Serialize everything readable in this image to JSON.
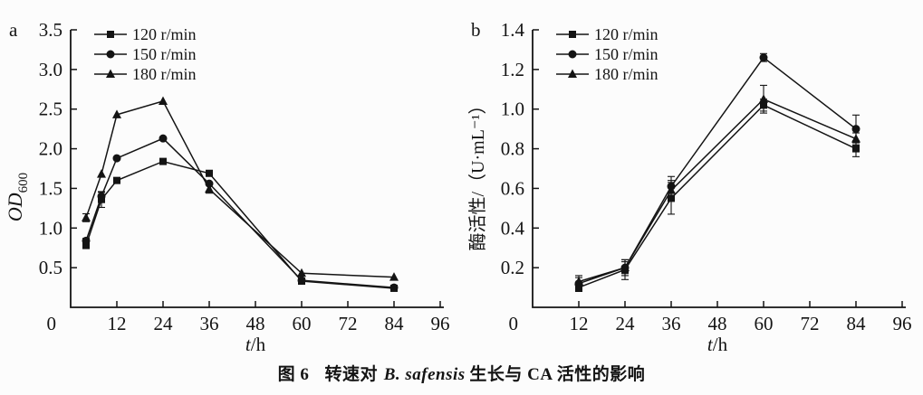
{
  "colors": {
    "ink": "#141414",
    "background": "#fcfcfc"
  },
  "figure": {
    "caption": {
      "figure_no": "图 6",
      "pre": "转速对",
      "species": "B. safensis",
      "post": "生长与 CA 活性的影响"
    }
  },
  "chart_data": [
    {
      "type": "line",
      "panel_label": "a",
      "xlabel": {
        "italic": "t",
        "rest": "/h"
      },
      "ylabel": {
        "main": "OD",
        "sub": "600"
      },
      "xlim": [
        0,
        96
      ],
      "ylim": [
        0,
        3.5
      ],
      "xticks": [
        12,
        24,
        36,
        48,
        60,
        72,
        84,
        96
      ],
      "yticks": [
        0,
        0.5,
        1.0,
        1.5,
        2.0,
        2.5,
        3.0,
        3.5
      ],
      "ytick_labels": [
        "0",
        "0.5",
        "1.0",
        "1.5",
        "2.0",
        "2.5",
        "3.0",
        "3.5"
      ],
      "grid": false,
      "legend_position": "top-left",
      "x": [
        4,
        8,
        12,
        24,
        36,
        60,
        84
      ],
      "series": [
        {
          "name": "120 r/min",
          "marker": "square",
          "values": [
            0.78,
            1.36,
            1.6,
            1.84,
            1.69,
            0.33,
            0.24
          ],
          "errors": [
            0.03,
            0.1,
            0,
            0,
            0,
            0,
            0
          ]
        },
        {
          "name": "150 r/min",
          "marker": "circle",
          "values": [
            0.84,
            1.4,
            1.88,
            2.13,
            1.56,
            0.34,
            0.25
          ],
          "errors": [
            0.03,
            0.05,
            0,
            0,
            0,
            0,
            0
          ]
        },
        {
          "name": "180 r/min",
          "marker": "triangle",
          "values": [
            1.13,
            1.68,
            2.43,
            2.6,
            1.49,
            0.43,
            0.38
          ],
          "errors": [
            0.05,
            0,
            0,
            0,
            0.05,
            0,
            0
          ]
        }
      ]
    },
    {
      "type": "line",
      "panel_label": "b",
      "xlabel": {
        "italic": "t",
        "rest": "/h"
      },
      "ylabel": {
        "main": "酶活性/（U·mL⁻¹）"
      },
      "xlim": [
        0,
        96
      ],
      "ylim": [
        0,
        1.4
      ],
      "xticks": [
        12,
        24,
        36,
        48,
        60,
        72,
        84,
        96
      ],
      "yticks": [
        0,
        0.2,
        0.4,
        0.6,
        0.8,
        1.0,
        1.2,
        1.4
      ],
      "ytick_labels": [
        "0",
        "0.2",
        "0.4",
        "0.6",
        "0.8",
        "1.0",
        "1.2",
        "1.4"
      ],
      "grid": false,
      "legend_position": "top-left",
      "x": [
        12,
        24,
        36,
        60,
        84
      ],
      "series": [
        {
          "name": "120 r/min",
          "marker": "square",
          "values": [
            0.1,
            0.19,
            0.55,
            1.02,
            0.8
          ],
          "errors": [
            0.02,
            0.05,
            0.08,
            0.03,
            0.04
          ]
        },
        {
          "name": "150 r/min",
          "marker": "circle",
          "values": [
            0.12,
            0.2,
            0.61,
            1.26,
            0.9
          ],
          "errors": [
            0.03,
            0.03,
            0.05,
            0.02,
            0.07
          ]
        },
        {
          "name": "180 r/min",
          "marker": "triangle",
          "values": [
            0.13,
            0.2,
            0.59,
            1.05,
            0.85
          ],
          "errors": [
            0.03,
            0.04,
            0.05,
            0.07,
            0.03
          ]
        }
      ]
    }
  ]
}
